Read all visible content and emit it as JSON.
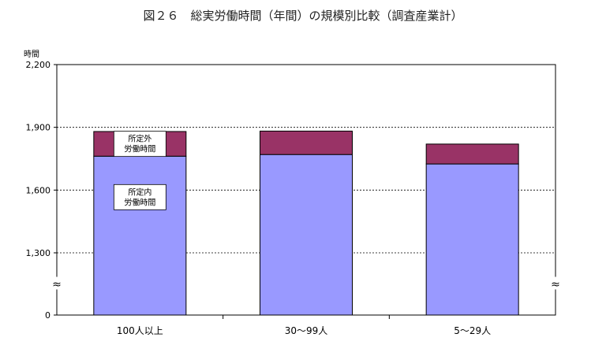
{
  "chart_data": {
    "type": "bar",
    "stacked": true,
    "title": "図２６　総実労働時間（年間）の規模別比較（調査産業計）",
    "ylabel": "時間",
    "ytick_labels": [
      "0",
      "1,300",
      "1,600",
      "1,900",
      "2,200"
    ],
    "ytick_values": [
      0,
      1300,
      1600,
      1900,
      2200
    ],
    "axis_break": true,
    "axis_break_glyph": "≈",
    "grid": true,
    "categories": [
      "100人以上",
      "30～99人",
      "5～29人"
    ],
    "series": [
      {
        "name": "所定内\n労働時間",
        "values": [
          1762,
          1770,
          1725
        ],
        "color": "#9999ff"
      },
      {
        "name": "所定外\n労働時間",
        "values": [
          118,
          112,
          95
        ],
        "color": "#993366"
      }
    ],
    "annotations": [
      {
        "series": 1,
        "category": 0,
        "text_lines": [
          "所定外",
          "労働時間"
        ]
      },
      {
        "series": 0,
        "category": 0,
        "text_lines": [
          "所定内",
          "労働時間"
        ]
      }
    ]
  }
}
